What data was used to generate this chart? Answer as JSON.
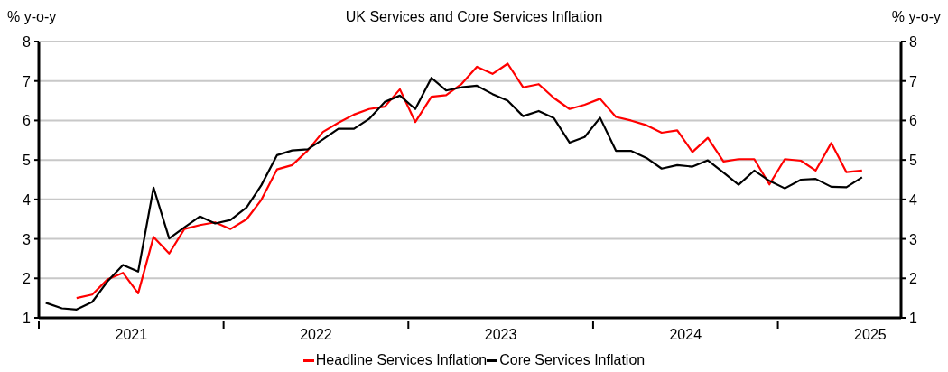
{
  "chart_data": {
    "type": "line",
    "title": "UK Services and Core Services Inflation",
    "ylabel": "% y-o-y",
    "y2label": "% y-o-y",
    "x": [
      "2021-01-15",
      "2021-02-15",
      "2021-03-15",
      "2021-04-15",
      "2021-05-15",
      "2021-06-15",
      "2021-07-15",
      "2021-08-15",
      "2021-09-15",
      "2021-10-15",
      "2021-11-15",
      "2021-12-15",
      "2022-01-15",
      "2022-02-15",
      "2022-03-15",
      "2022-04-15",
      "2022-05-15",
      "2022-06-15",
      "2022-07-15",
      "2022-08-15",
      "2022-09-15",
      "2022-10-15",
      "2022-11-15",
      "2022-12-15",
      "2023-01-15",
      "2023-02-15",
      "2023-03-15",
      "2023-04-15",
      "2023-05-15",
      "2023-06-15",
      "2023-07-15",
      "2023-08-15",
      "2023-09-15",
      "2023-10-15",
      "2023-11-15",
      "2023-12-15",
      "2024-01-15",
      "2024-02-15",
      "2024-03-15",
      "2024-04-15",
      "2024-05-15",
      "2024-06-15",
      "2024-07-15",
      "2024-08-15",
      "2024-09-15",
      "2024-10-15",
      "2024-11-15",
      "2024-12-15",
      "2025-01-15",
      "2025-02-15",
      "2025-03-15",
      "2025-04-15",
      "2025-05-15",
      "2025-06-15"
    ],
    "series": [
      {
        "name": "Headline Services Inflation",
        "color": "#ff0000",
        "values": [
          null,
          null,
          1.5,
          1.59,
          1.97,
          2.14,
          1.62,
          3.05,
          2.63,
          3.25,
          3.35,
          3.42,
          3.25,
          3.5,
          3.99,
          4.76,
          4.87,
          5.24,
          5.71,
          5.94,
          6.15,
          6.29,
          6.35,
          6.79,
          5.96,
          6.6,
          6.64,
          6.93,
          7.36,
          7.18,
          7.44,
          6.84,
          6.92,
          6.57,
          6.29,
          6.4,
          6.55,
          6.09,
          6.0,
          5.88,
          5.69,
          5.75,
          5.2,
          5.56,
          4.96,
          5.02,
          5.02,
          4.38,
          5.02,
          4.98,
          4.73,
          5.43,
          4.69,
          4.73
        ]
      },
      {
        "name": "Core Services Inflation",
        "color": "#000000",
        "values": [
          1.38,
          1.24,
          1.21,
          1.4,
          1.92,
          2.34,
          2.17,
          4.3,
          3.01,
          3.29,
          3.57,
          3.39,
          3.48,
          3.8,
          4.36,
          5.12,
          5.24,
          5.27,
          5.52,
          5.79,
          5.79,
          6.04,
          6.47,
          6.63,
          6.29,
          7.08,
          6.76,
          6.84,
          6.88,
          6.67,
          6.5,
          6.11,
          6.24,
          6.06,
          5.44,
          5.58,
          6.07,
          5.23,
          5.23,
          5.05,
          4.78,
          4.87,
          4.83,
          4.99,
          4.68,
          4.37,
          4.73,
          4.47,
          4.28,
          4.5,
          4.52,
          4.32,
          4.31,
          4.56
        ]
      }
    ],
    "xlim": [
      "2021-01-01",
      "2025-09-01"
    ],
    "xticks": [
      {
        "value": "2021-01-01",
        "label": null
      },
      {
        "value": "2021-07-01",
        "label": "2021"
      },
      {
        "value": "2022-01-01",
        "label": null
      },
      {
        "value": "2022-07-01",
        "label": "2022"
      },
      {
        "value": "2023-01-01",
        "label": null
      },
      {
        "value": "2023-07-01",
        "label": "2023"
      },
      {
        "value": "2024-01-01",
        "label": null
      },
      {
        "value": "2024-07-01",
        "label": "2024"
      },
      {
        "value": "2025-01-01",
        "label": null
      },
      {
        "value": "2025-07-01",
        "label": "2025"
      }
    ],
    "ylim": [
      1,
      8
    ],
    "yticks": [
      1,
      2,
      3,
      4,
      5,
      6,
      7,
      8
    ],
    "y2lim": [
      1,
      8
    ],
    "y2ticks": [
      1,
      2,
      3,
      4,
      5,
      6,
      7,
      8
    ],
    "grid": "y",
    "legend": "bottom",
    "marker": "none",
    "line_style": "solid"
  }
}
